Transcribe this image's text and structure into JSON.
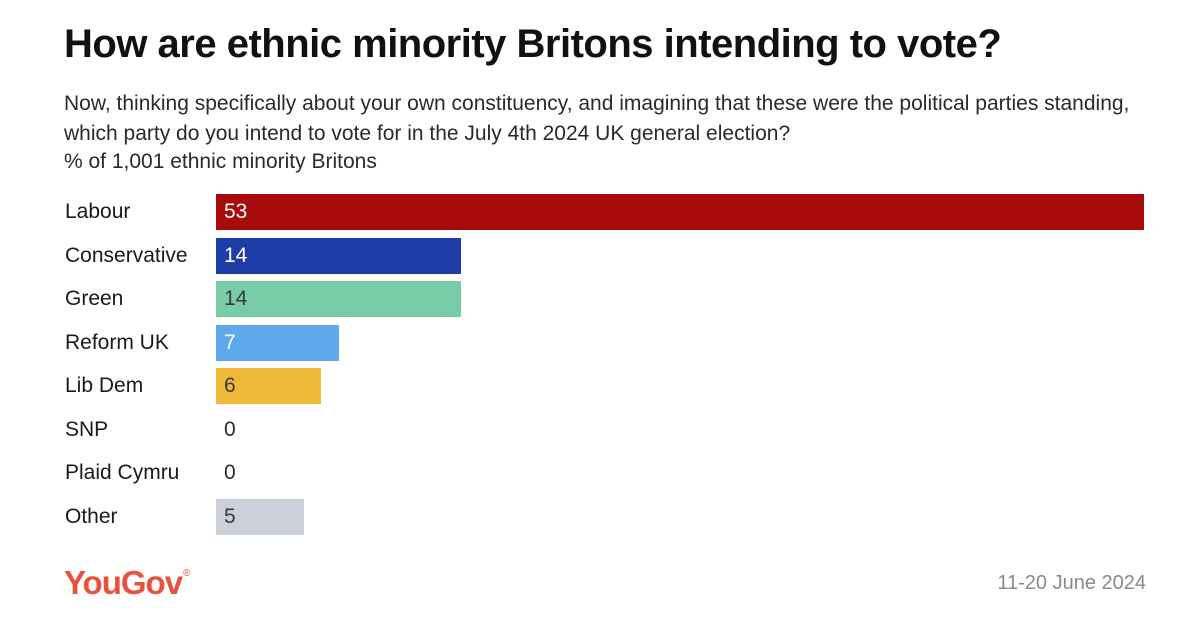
{
  "title": "How are ethnic minority Britons intending to vote?",
  "subtitle": "Now, thinking specifically about your own constituency, and imagining that these were the political parties standing, which party do you intend to vote for in the July 4th 2024 UK general election?",
  "note": "% of 1,001 ethnic minority Britons",
  "footer": {
    "brand": "YouGov",
    "brand_mark": "®",
    "date": "11-20 June 2024"
  },
  "chart_data": {
    "type": "bar",
    "orientation": "horizontal",
    "title": "How are ethnic minority Britons intending to vote?",
    "categories": [
      "Labour",
      "Conservative",
      "Green",
      "Reform UK",
      "Lib Dem",
      "SNP",
      "Plaid Cymru",
      "Other"
    ],
    "values": [
      53,
      14,
      14,
      7,
      6,
      0,
      0,
      5
    ],
    "value_labels": [
      "53",
      "14",
      "14",
      "7",
      "6",
      "0",
      "0",
      "5"
    ],
    "colors": [
      "#a70a0a",
      "#1f3da6",
      "#79cca8",
      "#5ea8ee",
      "#f0b93a",
      "#d8d8d8",
      "#d8d8d8",
      "#ccd0db"
    ],
    "label_colors": [
      "#ffffff",
      "#ffffff",
      "#3a3a3a",
      "#ffffff",
      "#3a3a3a",
      "#2a2a2a",
      "#2a2a2a",
      "#3a3a3a"
    ],
    "xlim": [
      0,
      53
    ],
    "grid": false,
    "legend": "none"
  }
}
